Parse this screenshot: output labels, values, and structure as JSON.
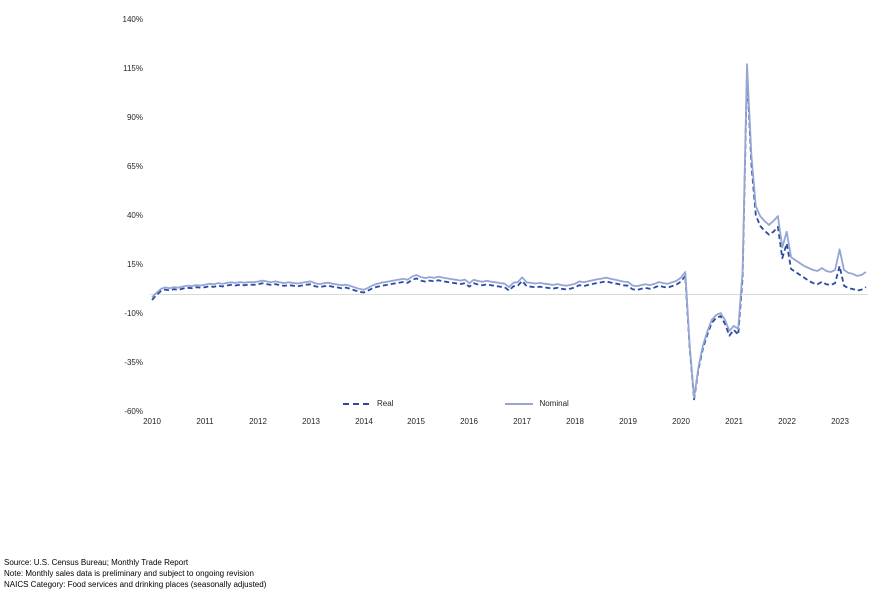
{
  "chart_data": {
    "type": "line",
    "title": "",
    "x_start_year": 2010,
    "x_months": 163,
    "y_axis": {
      "tick_labels": [
        "140%",
        "115%",
        "90%",
        "65%",
        "40%",
        "15%",
        "-10%",
        "-35%",
        "-60%"
      ],
      "tick_values": [
        140,
        115,
        90,
        65,
        40,
        15,
        -10,
        -35,
        -60
      ],
      "ylim": [
        -60,
        140
      ],
      "zero_line": true
    },
    "x_axis": {
      "tick_labels": [
        "2010",
        "2011",
        "2012",
        "2013",
        "2014",
        "2015",
        "2016",
        "2017",
        "2018",
        "2019",
        "2020",
        "2021",
        "2022",
        "2023"
      ]
    },
    "legend": [
      {
        "name": "Real",
        "style": "dashed",
        "color": "#2b4ba1"
      },
      {
        "name": "Nominal",
        "style": "solid",
        "color": "#95a6d4"
      }
    ],
    "gridline_color": "#d9d9d9",
    "series": [
      {
        "name": "Real",
        "style": "dashed",
        "color": "#2b4ba1",
        "values": [
          -2.8,
          -0.3,
          1.7,
          2.5,
          2.1,
          2.7,
          2.4,
          3.0,
          3.4,
          3.2,
          3.7,
          3.5,
          3.7,
          4.2,
          3.9,
          4.5,
          4.1,
          4.6,
          4.9,
          4.6,
          5.0,
          4.7,
          5.1,
          4.9,
          5.2,
          5.7,
          5.3,
          4.9,
          5.3,
          4.8,
          4.4,
          4.8,
          4.5,
          4.2,
          4.6,
          5.0,
          5.2,
          4.2,
          3.8,
          4.2,
          4.5,
          4.0,
          3.6,
          3.2,
          3.5,
          2.9,
          2.1,
          1.5,
          1.0,
          2.0,
          3.1,
          3.9,
          4.4,
          4.8,
          5.2,
          5.6,
          6.0,
          6.4,
          5.9,
          7.4,
          8.2,
          7.1,
          6.6,
          7.1,
          6.7,
          7.3,
          6.8,
          6.4,
          6.0,
          5.7,
          5.3,
          5.8,
          4.0,
          5.7,
          5.1,
          4.7,
          5.2,
          4.7,
          4.4,
          4.0,
          3.7,
          2.0,
          4.2,
          4.5,
          6.9,
          4.3,
          4.0,
          3.7,
          4.0,
          3.6,
          3.3,
          3.0,
          3.4,
          2.9,
          2.6,
          3.0,
          3.6,
          4.8,
          4.3,
          4.9,
          5.4,
          5.8,
          6.2,
          6.7,
          6.1,
          5.7,
          5.2,
          4.7,
          4.5,
          2.7,
          2.3,
          2.9,
          3.3,
          2.9,
          3.5,
          4.5,
          3.9,
          3.5,
          4.3,
          5.1,
          6.6,
          9.5,
          -27.5,
          -53.5,
          -38.0,
          -27.5,
          -20.5,
          -14.5,
          -12.0,
          -11.0,
          -15.0,
          -21.0,
          -18.0,
          -20.5,
          8.5,
          113.5,
          66.5,
          40.5,
          35.0,
          32.5,
          30.5,
          32.0,
          34.5,
          18.5,
          26.0,
          13.0,
          11.5,
          10.0,
          8.5,
          7.0,
          5.8,
          5.2,
          6.5,
          5.2,
          4.8,
          5.8,
          14.5,
          4.5,
          3.2,
          2.8,
          2.0,
          2.5,
          3.8
        ]
      },
      {
        "name": "Nominal",
        "style": "solid",
        "color": "#95a6d4",
        "values": [
          -1.5,
          0.8,
          2.8,
          3.6,
          3.2,
          3.8,
          3.5,
          4.1,
          4.5,
          4.3,
          4.8,
          4.6,
          5.0,
          5.5,
          5.2,
          5.8,
          5.4,
          5.9,
          6.2,
          5.9,
          6.3,
          6.0,
          6.4,
          6.2,
          6.6,
          7.1,
          6.7,
          6.3,
          6.7,
          6.2,
          5.8,
          6.2,
          5.9,
          5.6,
          6.0,
          6.4,
          6.7,
          5.7,
          5.3,
          5.7,
          6.0,
          5.5,
          5.1,
          4.7,
          5.0,
          4.4,
          3.6,
          2.9,
          2.4,
          3.4,
          4.6,
          5.4,
          6.0,
          6.4,
          6.8,
          7.2,
          7.6,
          8.0,
          7.5,
          9.1,
          10.0,
          8.9,
          8.4,
          8.9,
          8.5,
          9.1,
          8.6,
          8.2,
          7.8,
          7.5,
          7.1,
          7.6,
          5.8,
          7.5,
          6.9,
          6.5,
          7.0,
          6.5,
          6.2,
          5.8,
          5.5,
          3.8,
          6.0,
          6.3,
          8.8,
          6.2,
          5.9,
          5.6,
          5.9,
          5.5,
          5.2,
          4.9,
          5.3,
          4.8,
          4.5,
          4.9,
          5.5,
          6.7,
          6.2,
          6.8,
          7.3,
          7.7,
          8.1,
          8.6,
          8.0,
          7.6,
          7.1,
          6.6,
          6.4,
          4.6,
          4.2,
          4.8,
          5.2,
          4.8,
          5.4,
          6.4,
          5.8,
          5.4,
          6.2,
          7.0,
          8.6,
          11.5,
          -26.0,
          -52.5,
          -37.0,
          -26.0,
          -19.0,
          -13.0,
          -10.5,
          -9.5,
          -13.0,
          -18.5,
          -16.0,
          -17.5,
          12.0,
          117.5,
          71.0,
          45.0,
          40.0,
          37.5,
          35.5,
          37.5,
          40.0,
          24.0,
          32.0,
          19.0,
          17.5,
          16.0,
          14.5,
          13.5,
          12.5,
          12.0,
          13.5,
          12.0,
          11.5,
          12.5,
          23.0,
          12.5,
          11.0,
          10.5,
          9.5,
          10.0,
          11.5
        ]
      }
    ]
  },
  "footer": {
    "source": "Source: U.S. Census Bureau; Monthly Trade Report",
    "note": "Note: Monthly sales data is preliminary and subject to ongoing revision",
    "naics": "NAICS Category: Food services and drinking places (seasonally adjusted)"
  }
}
